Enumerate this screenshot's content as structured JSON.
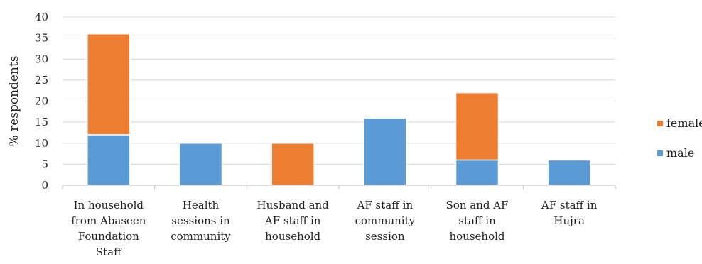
{
  "chart_data": {
    "type": "bar",
    "stacked": true,
    "categories": [
      [
        "In household",
        "from Abaseen",
        "Foundation",
        "Staff"
      ],
      [
        "Health",
        "sessions in",
        "community"
      ],
      [
        "Husband and",
        "AF staff in",
        "household"
      ],
      [
        "AF staff in",
        "community",
        "session"
      ],
      [
        "Son and AF",
        "staff in",
        "household"
      ],
      [
        "AF staff in",
        "Hujra"
      ]
    ],
    "series": [
      {
        "name": "male",
        "color": "#5b9bd5",
        "values": [
          12,
          10,
          0,
          16,
          6,
          6
        ]
      },
      {
        "name": "female",
        "color": "#ed7d31",
        "values": [
          24,
          0,
          10,
          0,
          16,
          0
        ]
      }
    ],
    "ylabel": "% respondents",
    "ylim": [
      0,
      40
    ],
    "yticks": [
      "0",
      "5",
      "10",
      "15",
      "20",
      "25",
      "30",
      "35",
      "40"
    ],
    "grid": true,
    "legend": {
      "position": "right",
      "order": [
        "female",
        "male"
      ]
    }
  }
}
